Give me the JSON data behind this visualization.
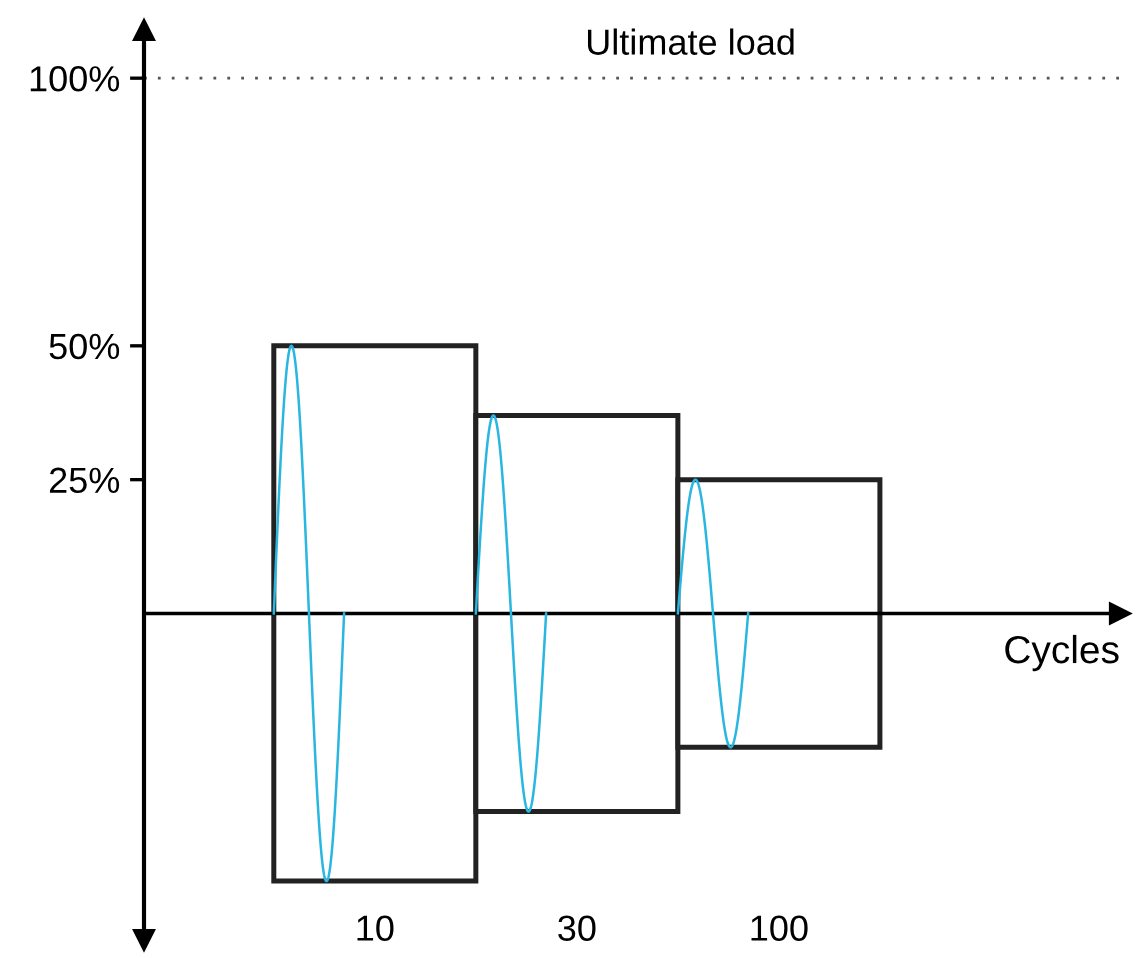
{
  "chart_data": {
    "type": "bar",
    "xlabel": "Cycles",
    "categories": [
      "10",
      "30",
      "100"
    ],
    "base": [
      -50,
      -37,
      -25
    ],
    "values": [
      100,
      74,
      50
    ],
    "color": "#ffffff",
    "ylim": [
      -61,
      109
    ],
    "yticks": [
      {
        "value": 25,
        "label": "25%"
      },
      {
        "value": 50,
        "label": "50%"
      },
      {
        "value": 100,
        "label": "100%"
      }
    ],
    "ref_lines": [
      {
        "axis": "y",
        "value": 100,
        "label": "Ultimate load",
        "color": "#555555",
        "line_style": "dotted"
      }
    ],
    "grid": false,
    "legend": false
  }
}
